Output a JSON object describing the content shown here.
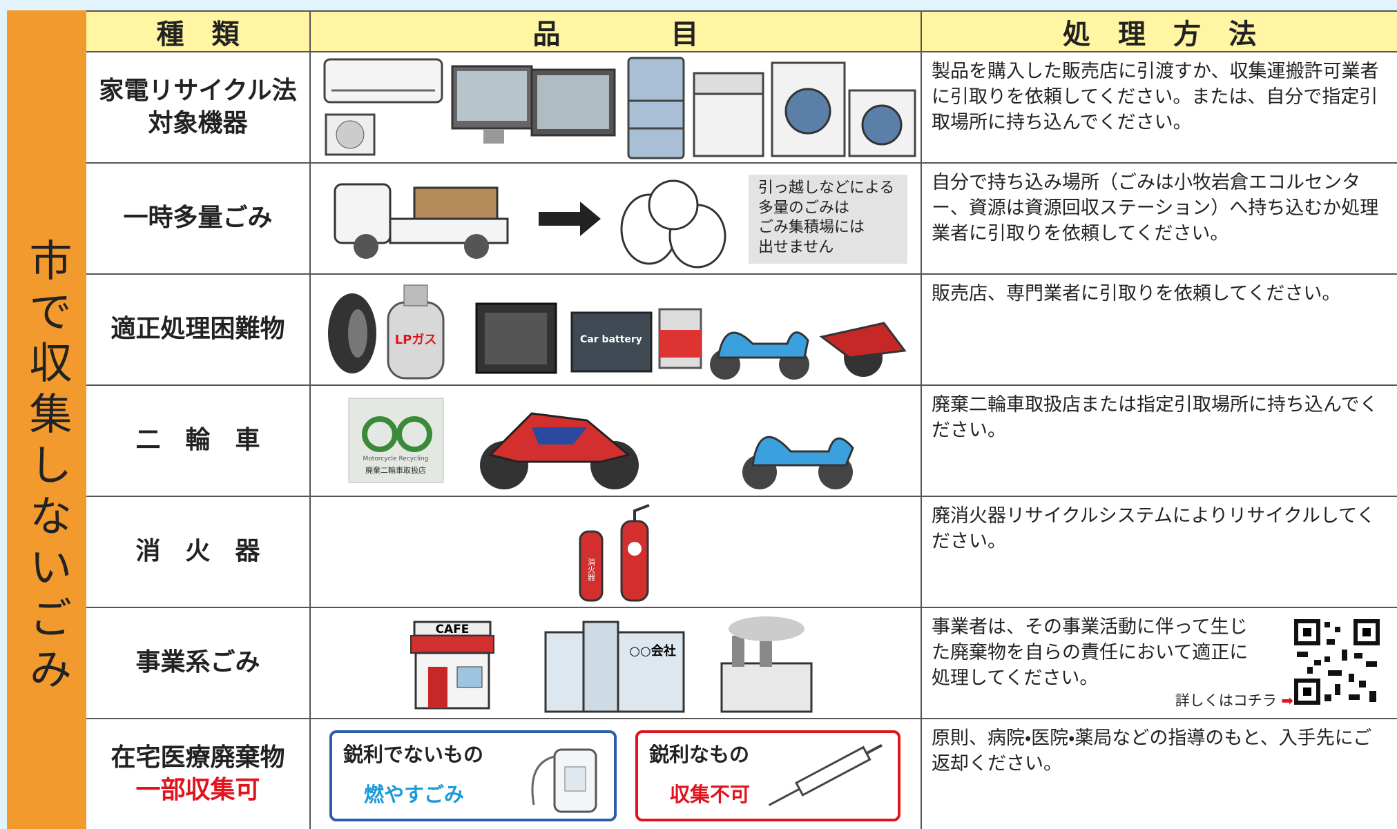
{
  "side_label": "市で収集しないごみ",
  "header": [
    "種　類",
    "品　　　　目",
    "処　理　方　法"
  ],
  "rows": [
    {
      "type": [
        "家電リサイクル法",
        "対象機器"
      ],
      "method": "製品を購入した販売店に引渡すか、収集運搬許可業者に引取りを依頼してください。または、自分で指定引取場所に持ち込んでください。"
    },
    {
      "type": [
        "一時多量ごみ"
      ],
      "note": [
        "引っ越しなどによる",
        "多量のごみは",
        "ごみ集積場には",
        "出せません"
      ],
      "method": "自分で持ち込み場所（ごみは小牧岩倉エコルセンター、資源は資源回収ステーション）へ持ち込むか処理業者に引取りを依頼してください。"
    },
    {
      "type": [
        "適正処理困難物"
      ],
      "image_labels": [
        "LPガス",
        "Car battery"
      ],
      "method": "販売店、専門業者に引取りを依頼してください。"
    },
    {
      "type": [
        "二　輪　車"
      ],
      "image_labels": [
        "Motorcycle Recycling",
        "廃棄二輪車取扱店"
      ],
      "method": "廃棄二輪車取扱店または指定引取場所に持ち込んでください。"
    },
    {
      "type": [
        "消　火　器"
      ],
      "image_labels": [
        "消火器"
      ],
      "method": "廃消火器リサイクルシステムによりリサイクルしてください。"
    },
    {
      "type": [
        "事業系ごみ"
      ],
      "image_labels": [
        "CAFE",
        "○○会社"
      ],
      "method": "事業者は、その事業活動に伴って生じた廃棄物を自らの責任において適正に処理してください。",
      "link": "詳しくはコチラ"
    },
    {
      "type": [
        "在宅医療廃棄物"
      ],
      "type_note": "一部収集可",
      "boxes": [
        {
          "title": "鋭利でないもの",
          "label": "燃やすごみ"
        },
        {
          "title": "鋭利なもの",
          "label": "収集不可"
        }
      ],
      "method": "原則、病院・医院・薬局などの指導のもと、入手先にご返却ください。"
    }
  ]
}
